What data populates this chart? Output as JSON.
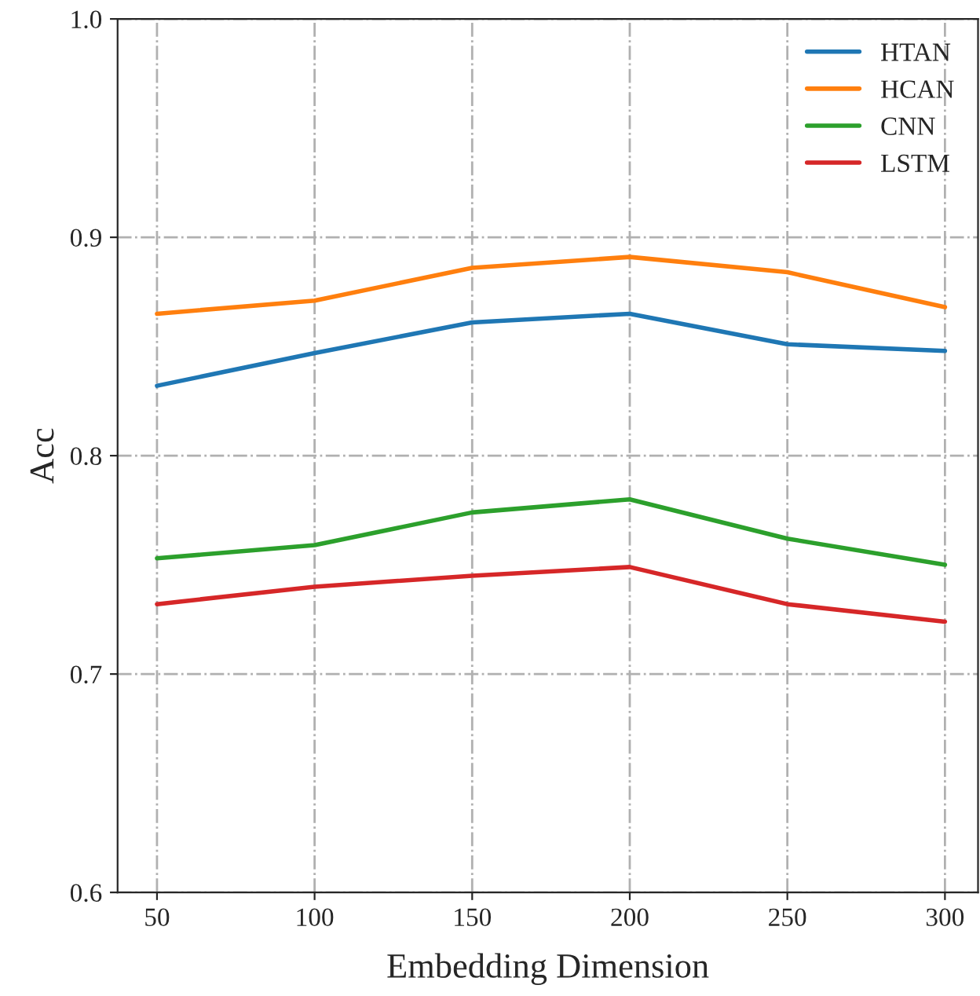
{
  "chart_data": {
    "type": "line",
    "xlabel": "Embedding Dimension",
    "ylabel": "Acc",
    "x": [
      50,
      100,
      150,
      200,
      250,
      300
    ],
    "series": [
      {
        "name": "HTAN",
        "color": "#1f77b4",
        "values": [
          0.832,
          0.847,
          0.861,
          0.865,
          0.851,
          0.848
        ]
      },
      {
        "name": "HCAN",
        "color": "#ff7f0e",
        "values": [
          0.865,
          0.871,
          0.886,
          0.891,
          0.884,
          0.868
        ]
      },
      {
        "name": "CNN",
        "color": "#2ca02c",
        "values": [
          0.753,
          0.759,
          0.774,
          0.78,
          0.762,
          0.75
        ]
      },
      {
        "name": "LSTM",
        "color": "#d62728",
        "values": [
          0.732,
          0.74,
          0.745,
          0.749,
          0.732,
          0.724
        ]
      }
    ],
    "xlim": [
      37.5,
      310.5
    ],
    "xticks": [
      50,
      100,
      150,
      200,
      250,
      300
    ],
    "ylim": [
      0.6,
      1.0
    ],
    "yticks": [
      {
        "value": 0.6,
        "label": "0.6"
      },
      {
        "value": 0.7,
        "label": "0.7"
      },
      {
        "value": 0.8,
        "label": "0.8"
      },
      {
        "value": 0.9,
        "label": "0.9"
      },
      {
        "value": 1.0,
        "label": "1.0"
      }
    ],
    "grid": true,
    "legend": "top right",
    "line_style": "solid",
    "marker": "none"
  }
}
